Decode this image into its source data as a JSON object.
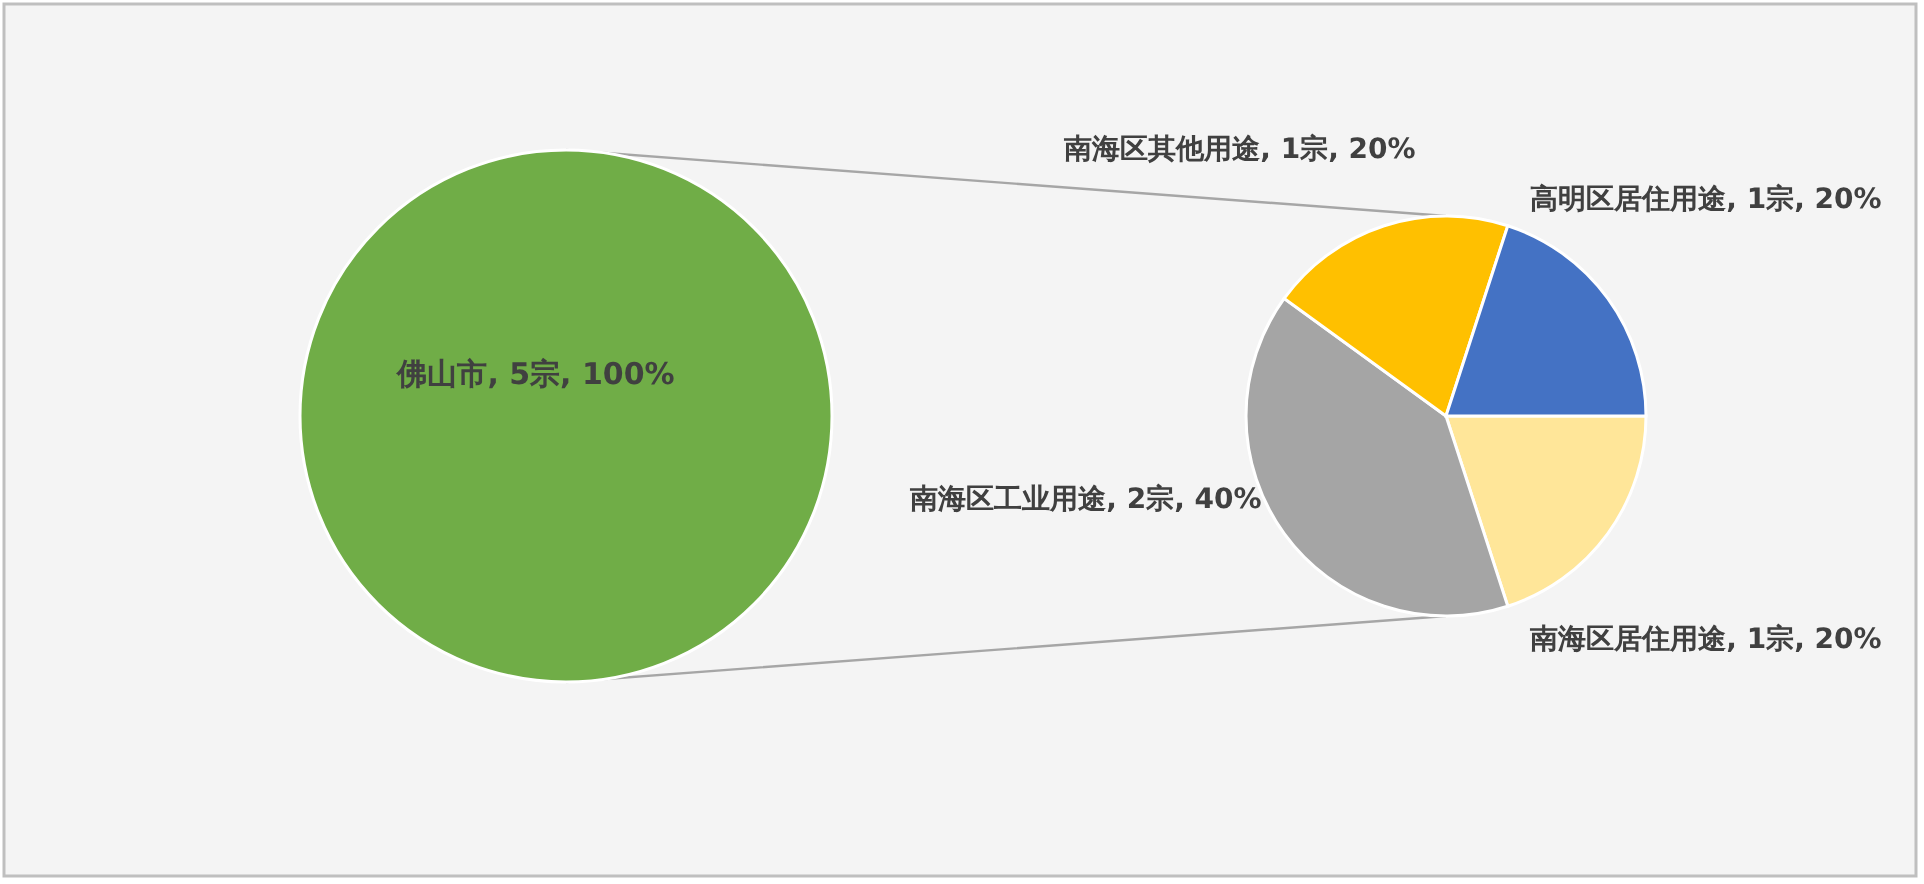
{
  "chart_data": [
    {
      "type": "pie",
      "categories": [
        "佛山市"
      ],
      "values": [
        5
      ],
      "value_labels": [
        "5宗, 100%"
      ],
      "colors": [
        "#70ad47"
      ]
    },
    {
      "type": "pie",
      "categories": [
        "南海区居住用途",
        "南海区工业用途",
        "南海区其他用途",
        "高明区居住用途"
      ],
      "values": [
        1,
        2,
        1,
        1
      ],
      "value_labels": [
        "1宗, 20%",
        "2宗, 40%",
        "1宗, 20%",
        "1宗, 20%"
      ],
      "colors": [
        "#ffe699",
        "#a5a5a5",
        "#ffc000",
        "#4472c4"
      ]
    }
  ]
}
